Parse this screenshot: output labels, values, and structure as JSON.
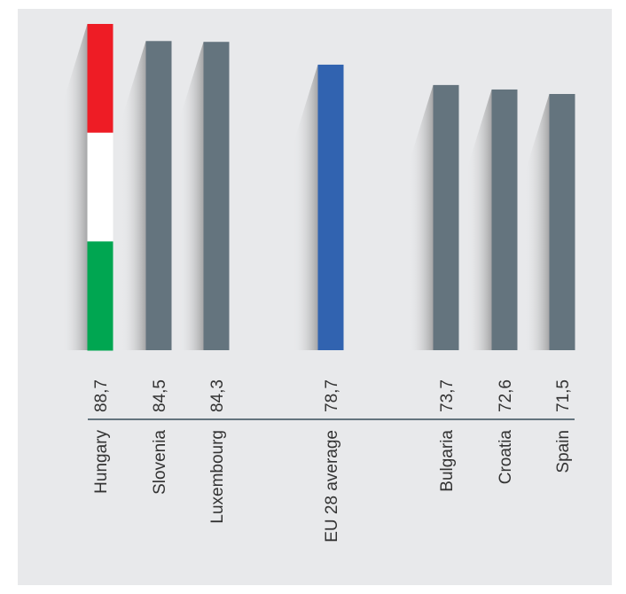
{
  "chart_data": {
    "type": "bar",
    "orientation": "vertical",
    "title": "",
    "xlabel": "",
    "ylabel": "",
    "categories": [
      "Hungary",
      "Slovenia",
      "Luxembourg",
      "EU 28 average",
      "Bulgaria",
      "Croatia",
      "Spain"
    ],
    "value_labels": [
      "88,7",
      "84,5",
      "84,3",
      "78,7",
      "73,7",
      "72,6",
      "71,5"
    ],
    "values": [
      88.7,
      84.5,
      84.3,
      78.7,
      73.7,
      72.6,
      71.5
    ],
    "grid": false,
    "legend": "none",
    "colors": {
      "default_bar": "#64747e",
      "highlight_bar": "#3163b0",
      "flag_top": "#ee1c25",
      "flag_middle": "#ffffff",
      "flag_bottom": "#00a651",
      "axis": "#64747e",
      "background": "#e8e9eb"
    },
    "bar_styles": [
      "flag",
      "default",
      "default",
      "highlight",
      "default",
      "default",
      "default"
    ]
  }
}
